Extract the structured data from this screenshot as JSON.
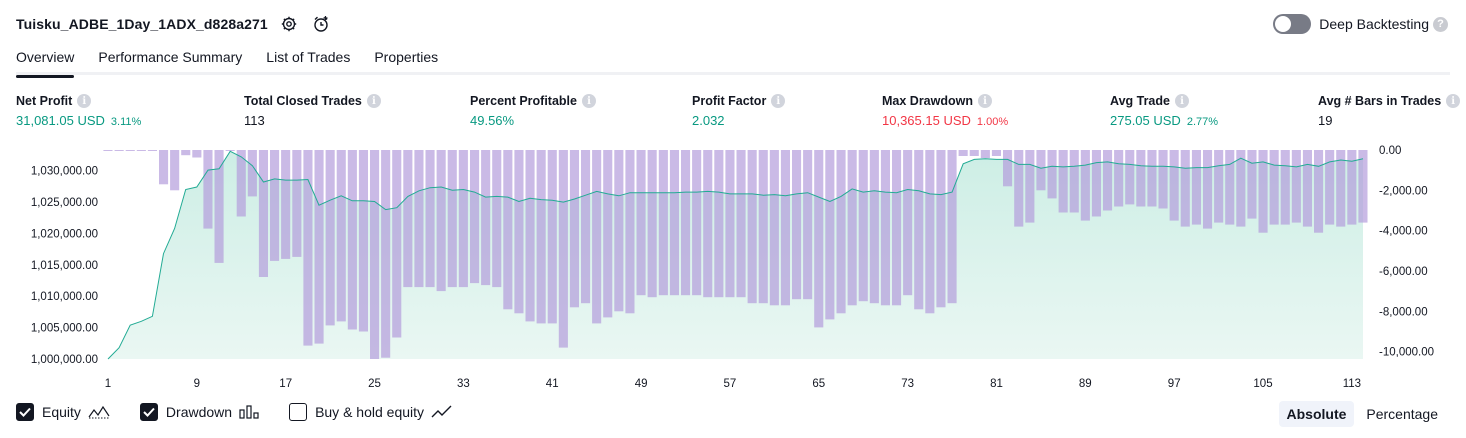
{
  "header": {
    "strategy_name": "Tuisku_ADBE_1Day_1ADX_d828a271",
    "deep_backtesting_label": "Deep Backtesting",
    "deep_backtesting_enabled": false
  },
  "tabs": [
    {
      "label": "Overview",
      "active": true
    },
    {
      "label": "Performance Summary",
      "active": false
    },
    {
      "label": "List of Trades",
      "active": false
    },
    {
      "label": "Properties",
      "active": false
    }
  ],
  "metrics": [
    {
      "label": "Net Profit",
      "value": "31,081.05 USD",
      "pct": "3.11%",
      "tone": "pos"
    },
    {
      "label": "Total Closed Trades",
      "value": "113",
      "pct": "",
      "tone": ""
    },
    {
      "label": "Percent Profitable",
      "value": "49.56%",
      "pct": "",
      "tone": "pos"
    },
    {
      "label": "Profit Factor",
      "value": "2.032",
      "pct": "",
      "tone": "pos"
    },
    {
      "label": "Max Drawdown",
      "value": "10,365.15 USD",
      "pct": "1.00%",
      "tone": "neg"
    },
    {
      "label": "Avg Trade",
      "value": "275.05 USD",
      "pct": "2.77%",
      "tone": "pos"
    },
    {
      "label": "Avg # Bars in Trades",
      "value": "19",
      "pct": "",
      "tone": ""
    }
  ],
  "legend": {
    "equity_label": "Equity",
    "equity_checked": true,
    "drawdown_label": "Drawdown",
    "drawdown_checked": true,
    "buyhold_label": "Buy & hold equity",
    "buyhold_checked": false
  },
  "modes": {
    "absolute_label": "Absolute",
    "percentage_label": "Percentage",
    "active": "absolute"
  },
  "colors": {
    "equity_line": "#22ab94",
    "equity_fill": "#cdeee5",
    "drawdown_bar": "#b39ddb",
    "positive": "#089981",
    "negative": "#f23645"
  },
  "chart_data": {
    "type": "area",
    "x": [
      1,
      2,
      3,
      4,
      5,
      6,
      7,
      8,
      9,
      10,
      11,
      12,
      13,
      14,
      15,
      16,
      17,
      18,
      19,
      20,
      21,
      22,
      23,
      24,
      25,
      26,
      27,
      28,
      29,
      30,
      31,
      32,
      33,
      34,
      35,
      36,
      37,
      38,
      39,
      40,
      41,
      42,
      43,
      44,
      45,
      46,
      47,
      48,
      49,
      50,
      51,
      52,
      53,
      54,
      55,
      56,
      57,
      58,
      59,
      60,
      61,
      62,
      63,
      64,
      65,
      66,
      67,
      68,
      69,
      70,
      71,
      72,
      73,
      74,
      75,
      76,
      77,
      78,
      79,
      80,
      81,
      82,
      83,
      84,
      85,
      86,
      87,
      88,
      89,
      90,
      91,
      92,
      93,
      94,
      95,
      96,
      97,
      98,
      99,
      100,
      101,
      102,
      103,
      104,
      105,
      106,
      107,
      108,
      109,
      110,
      111,
      112,
      113,
      114
    ],
    "x_ticks": [
      1,
      9,
      17,
      25,
      33,
      41,
      49,
      57,
      65,
      73,
      81,
      89,
      97,
      105,
      113
    ],
    "series": [
      {
        "name": "Equity",
        "axis": "left",
        "values": [
          1000000,
          1001800,
          1005400,
          1006000,
          1006800,
          1016800,
          1020800,
          1027000,
          1027400,
          1030100,
          1030300,
          1033100,
          1032200,
          1030800,
          1028200,
          1028700,
          1028500,
          1028500,
          1028600,
          1024500,
          1025300,
          1026000,
          1025200,
          1025200,
          1025100,
          1023800,
          1024100,
          1025900,
          1026800,
          1027300,
          1027400,
          1026900,
          1027000,
          1026600,
          1025800,
          1025900,
          1025800,
          1025100,
          1025600,
          1025400,
          1025300,
          1025000,
          1025500,
          1026100,
          1026700,
          1026300,
          1026000,
          1026500,
          1026500,
          1026500,
          1026500,
          1026500,
          1026600,
          1026600,
          1026700,
          1026600,
          1026300,
          1026300,
          1026300,
          1026100,
          1026200,
          1026000,
          1026300,
          1026500,
          1025800,
          1025100,
          1025900,
          1027100,
          1026600,
          1026800,
          1026600,
          1026500,
          1027000,
          1026800,
          1026300,
          1026200,
          1026600,
          1031100,
          1031800,
          1031900,
          1031800,
          1031800,
          1031000,
          1031000,
          1030400,
          1030700,
          1030600,
          1030700,
          1030900,
          1031300,
          1031400,
          1031100,
          1031000,
          1030800,
          1030700,
          1030700,
          1030600,
          1030400,
          1030500,
          1030500,
          1030800,
          1031000,
          1032000,
          1031200,
          1031400,
          1030900,
          1030800,
          1030600,
          1031000,
          1030700,
          1031400,
          1031700,
          1031500,
          1031900
        ],
        "color": "#22ab94"
      },
      {
        "name": "Drawdown",
        "axis": "right",
        "values": [
          -20,
          -20,
          -20,
          -20,
          -20,
          -1700,
          -2000,
          -260,
          -370,
          -3900,
          -5600,
          -30,
          -3300,
          -2300,
          -6300,
          -5500,
          -5400,
          -5300,
          -9700,
          -9600,
          -8700,
          -8500,
          -8900,
          -9000,
          -10365,
          -10300,
          -9300,
          -6800,
          -6800,
          -6800,
          -7000,
          -6800,
          -6800,
          -6600,
          -6700,
          -6800,
          -7900,
          -8100,
          -8500,
          -8600,
          -8600,
          -9800,
          -7800,
          -7600,
          -8600,
          -8300,
          -8000,
          -8100,
          -7200,
          -7300,
          -7200,
          -7200,
          -7200,
          -7200,
          -7300,
          -7300,
          -7300,
          -7300,
          -7600,
          -7600,
          -7700,
          -7700,
          -7400,
          -7400,
          -8800,
          -8400,
          -8100,
          -7700,
          -7500,
          -7600,
          -7700,
          -7700,
          -7200,
          -7900,
          -8100,
          -7800,
          -7600,
          -300,
          -300,
          -400,
          -300,
          -1800,
          -3800,
          -3600,
          -2000,
          -2400,
          -3100,
          -3100,
          -3500,
          -3300,
          -3000,
          -2800,
          -2700,
          -2800,
          -2800,
          -2900,
          -3500,
          -3800,
          -3700,
          -3900,
          -3600,
          -3700,
          -3800,
          -3400,
          -4100,
          -3700,
          -3700,
          -3600,
          -3800,
          -4100,
          -3700,
          -3800,
          -3700,
          -3600
        ],
        "color": "#b39ddb"
      }
    ],
    "y_left_ticks": [
      1000000,
      1005000,
      1010000,
      1015000,
      1020000,
      1025000,
      1030000
    ],
    "y_left_tick_labels": [
      "1,000,000.00",
      "1,005,000.00",
      "1,010,000.00",
      "1,015,000.00",
      "1,020,000.00",
      "1,025,000.00",
      "1,030,000.00"
    ],
    "y_left_range": [
      1000000,
      1033300
    ],
    "y_right_ticks": [
      0,
      -2000,
      -4000,
      -6000,
      -8000,
      -10000
    ],
    "y_right_tick_labels": [
      "0.00",
      "-2,000.00",
      "-4,000.00",
      "-6,000.00",
      "-8,000.00",
      "-10,000.00"
    ],
    "y_right_range": [
      -10365,
      0
    ],
    "grid": false
  }
}
